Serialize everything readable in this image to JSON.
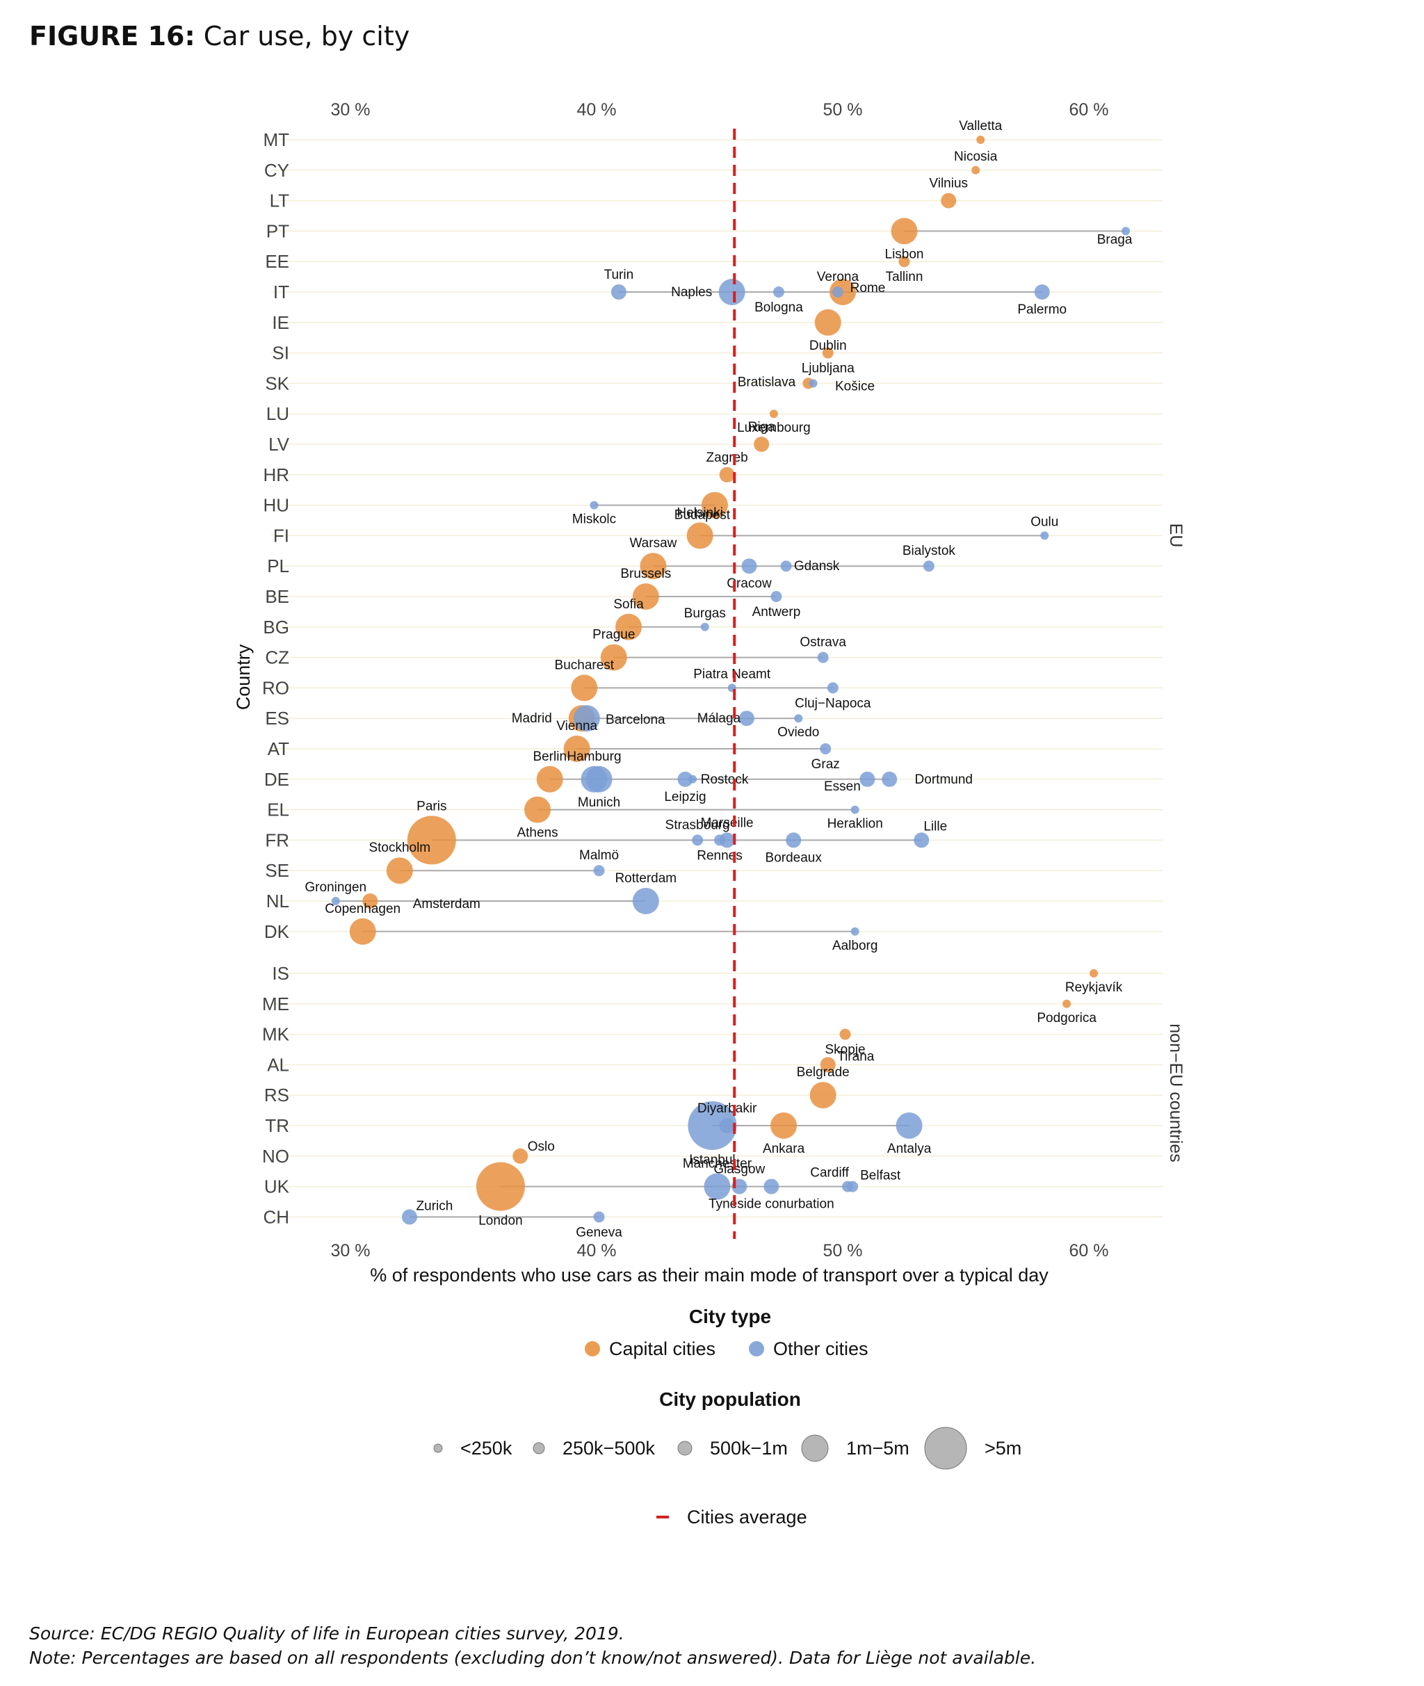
{
  "figure": {
    "label": "FIGURE 16:",
    "title": "Car use, by city"
  },
  "footnotes": {
    "source": "Source: EC/DG REGIO Quality of life in European cities survey, 2019.",
    "note": "Note: Percentages are based on all respondents (excluding don’t know/not answered). Data for Liège not available."
  },
  "chart_data": {
    "type": "scatter",
    "xlabel": "% of respondents who use cars as their main mode of transport over a typical day",
    "ylabel": "Country",
    "xlim": [
      27.5,
      63.5
    ],
    "x_ticks": [
      30,
      40,
      50,
      60
    ],
    "x_tick_labels": [
      "30 %",
      "40 %",
      "50 %",
      "60 %"
    ],
    "x_axis_positions": "top and bottom",
    "average": 45.6,
    "average_label": "Cities average",
    "groups": [
      {
        "label": "EU",
        "countries": [
          "MT",
          "CY",
          "LT",
          "PT",
          "EE",
          "IT",
          "IE",
          "SI",
          "SK",
          "LU",
          "LV",
          "HR",
          "HU",
          "FI",
          "PL",
          "BE",
          "BG",
          "CZ",
          "RO",
          "ES",
          "AT",
          "DE",
          "EL",
          "FR",
          "SE",
          "NL",
          "DK"
        ]
      },
      {
        "label": "non−EU countries",
        "countries": [
          "IS",
          "ME",
          "MK",
          "AL",
          "RS",
          "TR",
          "NO",
          "UK",
          "CH"
        ]
      }
    ],
    "legend_type": {
      "title": "City type",
      "items": [
        {
          "key": "capital",
          "label": "Capital cities",
          "color": "#e8913f"
        },
        {
          "key": "other",
          "label": "Other cities",
          "color": "#7b9fd6"
        }
      ]
    },
    "legend_size": {
      "title": "City population",
      "items": [
        {
          "label": "<250k",
          "size": 1
        },
        {
          "label": "250k−500k",
          "size": 2
        },
        {
          "label": "500k−1m",
          "size": 3
        },
        {
          "label": "1m−5m",
          "size": 4
        },
        {
          "label": ">5m",
          "size": 5
        }
      ]
    },
    "countries": [
      {
        "code": "MT",
        "cities": [
          {
            "name": "Valletta",
            "x": 55.6,
            "type": "capital",
            "size": 1
          }
        ]
      },
      {
        "code": "CY",
        "cities": [
          {
            "name": "Nicosia",
            "x": 55.4,
            "type": "capital",
            "size": 1
          }
        ]
      },
      {
        "code": "LT",
        "cities": [
          {
            "name": "Vilnius",
            "x": 54.3,
            "type": "capital",
            "size": 3
          }
        ]
      },
      {
        "code": "PT",
        "cities": [
          {
            "name": "Lisbon",
            "x": 52.5,
            "type": "capital",
            "size": 4
          },
          {
            "name": "Braga",
            "x": 61.5,
            "type": "other",
            "size": 1
          }
        ]
      },
      {
        "code": "EE",
        "cities": [
          {
            "name": "Tallinn",
            "x": 52.5,
            "type": "capital",
            "size": 2
          }
        ]
      },
      {
        "code": "IT",
        "cities": [
          {
            "name": "Turin",
            "x": 40.9,
            "type": "other",
            "size": 3
          },
          {
            "name": "Naples",
            "x": 45.5,
            "type": "other",
            "size": 4
          },
          {
            "name": "Bologna",
            "x": 47.4,
            "type": "other",
            "size": 2
          },
          {
            "name": "Verona",
            "x": 49.8,
            "type": "other",
            "size": 2
          },
          {
            "name": "Rome",
            "x": 50.0,
            "type": "capital",
            "size": 4
          },
          {
            "name": "Palermo",
            "x": 58.1,
            "type": "other",
            "size": 3
          }
        ]
      },
      {
        "code": "IE",
        "cities": [
          {
            "name": "Dublin",
            "x": 49.4,
            "type": "capital",
            "size": 4
          }
        ]
      },
      {
        "code": "SI",
        "cities": [
          {
            "name": "Ljubljana",
            "x": 49.4,
            "type": "capital",
            "size": 2
          }
        ]
      },
      {
        "code": "SK",
        "cities": [
          {
            "name": "Bratislava",
            "x": 48.6,
            "type": "capital",
            "size": 2
          },
          {
            "name": "Košice",
            "x": 48.8,
            "type": "other",
            "size": 1
          }
        ]
      },
      {
        "code": "LU",
        "cities": [
          {
            "name": "Luxembourg",
            "x": 47.2,
            "type": "capital",
            "size": 1
          }
        ]
      },
      {
        "code": "LV",
        "cities": [
          {
            "name": "Riga",
            "x": 46.7,
            "type": "capital",
            "size": 3
          }
        ]
      },
      {
        "code": "HR",
        "cities": [
          {
            "name": "Zagreb",
            "x": 45.3,
            "type": "capital",
            "size": 3
          }
        ]
      },
      {
        "code": "HU",
        "cities": [
          {
            "name": "Miskolc",
            "x": 39.9,
            "type": "other",
            "size": 1
          },
          {
            "name": "Budapest",
            "x": 44.8,
            "type": "capital",
            "size": 4
          }
        ]
      },
      {
        "code": "FI",
        "cities": [
          {
            "name": "Helsinki",
            "x": 44.2,
            "type": "capital",
            "size": 4
          },
          {
            "name": "Oulu",
            "x": 58.2,
            "type": "other",
            "size": 1
          }
        ]
      },
      {
        "code": "PL",
        "cities": [
          {
            "name": "Warsaw",
            "x": 42.3,
            "type": "capital",
            "size": 4
          },
          {
            "name": "Cracow",
            "x": 46.2,
            "type": "other",
            "size": 3
          },
          {
            "name": "Gdansk",
            "x": 47.7,
            "type": "other",
            "size": 2
          },
          {
            "name": "Bialystok",
            "x": 53.5,
            "type": "other",
            "size": 2
          }
        ]
      },
      {
        "code": "BE",
        "cities": [
          {
            "name": "Brussels",
            "x": 42.0,
            "type": "capital",
            "size": 4
          },
          {
            "name": "Antwerp",
            "x": 47.3,
            "type": "other",
            "size": 2
          }
        ]
      },
      {
        "code": "BG",
        "cities": [
          {
            "name": "Sofia",
            "x": 41.3,
            "type": "capital",
            "size": 4
          },
          {
            "name": "Burgas",
            "x": 44.4,
            "type": "other",
            "size": 1
          }
        ]
      },
      {
        "code": "CZ",
        "cities": [
          {
            "name": "Prague",
            "x": 40.7,
            "type": "capital",
            "size": 4
          },
          {
            "name": "Ostrava",
            "x": 49.2,
            "type": "other",
            "size": 2
          }
        ]
      },
      {
        "code": "RO",
        "cities": [
          {
            "name": "Bucharest",
            "x": 39.5,
            "type": "capital",
            "size": 4
          },
          {
            "name": "Piatra Neamt",
            "x": 45.5,
            "type": "other",
            "size": 1
          },
          {
            "name": "Cluj−Napoca",
            "x": 49.6,
            "type": "other",
            "size": 2
          }
        ]
      },
      {
        "code": "ES",
        "cities": [
          {
            "name": "Madrid",
            "x": 39.4,
            "type": "capital",
            "size": 4
          },
          {
            "name": "Barcelona",
            "x": 39.6,
            "type": "other",
            "size": 4
          },
          {
            "name": "Málaga",
            "x": 46.1,
            "type": "other",
            "size": 3
          },
          {
            "name": "Oviedo",
            "x": 48.2,
            "type": "other",
            "size": 1
          }
        ]
      },
      {
        "code": "AT",
        "cities": [
          {
            "name": "Vienna",
            "x": 39.2,
            "type": "capital",
            "size": 4
          },
          {
            "name": "Graz",
            "x": 49.3,
            "type": "other",
            "size": 2
          }
        ]
      },
      {
        "code": "DE",
        "cities": [
          {
            "name": "Berlin",
            "x": 38.1,
            "type": "capital",
            "size": 4
          },
          {
            "name": "Hamburg",
            "x": 39.9,
            "type": "other",
            "size": 4
          },
          {
            "name": "Munich",
            "x": 40.1,
            "type": "other",
            "size": 4
          },
          {
            "name": "Leipzig",
            "x": 43.6,
            "type": "other",
            "size": 3
          },
          {
            "name": "Rostock",
            "x": 43.9,
            "type": "other",
            "size": 1
          },
          {
            "name": "Essen",
            "x": 51.0,
            "type": "other",
            "size": 3
          },
          {
            "name": "Dortmund",
            "x": 51.9,
            "type": "other",
            "size": 3
          }
        ]
      },
      {
        "code": "EL",
        "cities": [
          {
            "name": "Athens",
            "x": 37.6,
            "type": "capital",
            "size": 4
          },
          {
            "name": "Heraklion",
            "x": 50.5,
            "type": "other",
            "size": 1
          }
        ]
      },
      {
        "code": "FR",
        "cities": [
          {
            "name": "Paris",
            "x": 33.3,
            "type": "capital",
            "size": 5
          },
          {
            "name": "Strasbourg",
            "x": 44.1,
            "type": "other",
            "size": 2
          },
          {
            "name": "Rennes",
            "x": 45.0,
            "type": "other",
            "size": 2
          },
          {
            "name": "Marseille",
            "x": 45.3,
            "type": "other",
            "size": 3
          },
          {
            "name": "Bordeaux",
            "x": 48.0,
            "type": "other",
            "size": 3
          },
          {
            "name": "Lille",
            "x": 53.2,
            "type": "other",
            "size": 3
          }
        ]
      },
      {
        "code": "SE",
        "cities": [
          {
            "name": "Stockholm",
            "x": 32.0,
            "type": "capital",
            "size": 4
          },
          {
            "name": "Malmö",
            "x": 40.1,
            "type": "other",
            "size": 2
          }
        ]
      },
      {
        "code": "NL",
        "cities": [
          {
            "name": "Groningen",
            "x": 29.4,
            "type": "other",
            "size": 1
          },
          {
            "name": "Amsterdam",
            "x": 30.8,
            "type": "capital",
            "size": 3
          },
          {
            "name": "Rotterdam",
            "x": 42.0,
            "type": "other",
            "size": 4
          }
        ]
      },
      {
        "code": "DK",
        "cities": [
          {
            "name": "Copenhagen",
            "x": 30.5,
            "type": "capital",
            "size": 4
          },
          {
            "name": "Aalborg",
            "x": 50.5,
            "type": "other",
            "size": 1
          }
        ]
      },
      {
        "code": "IS",
        "cities": [
          {
            "name": "Reykjavík",
            "x": 60.2,
            "type": "capital",
            "size": 1
          }
        ]
      },
      {
        "code": "ME",
        "cities": [
          {
            "name": "Podgorica",
            "x": 59.1,
            "type": "capital",
            "size": 1
          }
        ]
      },
      {
        "code": "MK",
        "cities": [
          {
            "name": "Skopje",
            "x": 50.1,
            "type": "capital",
            "size": 2
          }
        ]
      },
      {
        "code": "AL",
        "cities": [
          {
            "name": "Tirana",
            "x": 49.4,
            "type": "capital",
            "size": 3
          }
        ]
      },
      {
        "code": "RS",
        "cities": [
          {
            "name": "Belgrade",
            "x": 49.2,
            "type": "capital",
            "size": 4
          }
        ]
      },
      {
        "code": "TR",
        "cities": [
          {
            "name": "Istanbul",
            "x": 44.7,
            "type": "other",
            "size": 5
          },
          {
            "name": "Diyarbakir",
            "x": 45.3,
            "type": "other",
            "size": 3
          },
          {
            "name": "Ankara",
            "x": 47.6,
            "type": "capital",
            "size": 4
          },
          {
            "name": "Antalya",
            "x": 52.7,
            "type": "other",
            "size": 4
          }
        ]
      },
      {
        "code": "NO",
        "cities": [
          {
            "name": "Oslo",
            "x": 36.9,
            "type": "capital",
            "size": 3
          }
        ]
      },
      {
        "code": "UK",
        "cities": [
          {
            "name": "London",
            "x": 36.1,
            "type": "capital",
            "size": 5
          },
          {
            "name": "Manchester",
            "x": 44.9,
            "type": "other",
            "size": 4
          },
          {
            "name": "Glasgow",
            "x": 45.8,
            "type": "other",
            "size": 3
          },
          {
            "name": "Tyneside conurbation",
            "x": 47.1,
            "type": "other",
            "size": 3
          },
          {
            "name": "Cardiff",
            "x": 50.2,
            "type": "other",
            "size": 2
          },
          {
            "name": "Belfast",
            "x": 50.4,
            "type": "other",
            "size": 2
          }
        ]
      },
      {
        "code": "CH",
        "cities": [
          {
            "name": "Zurich",
            "x": 32.4,
            "type": "other",
            "size": 3
          },
          {
            "name": "Geneva",
            "x": 40.1,
            "type": "other",
            "size": 2
          }
        ]
      }
    ]
  }
}
